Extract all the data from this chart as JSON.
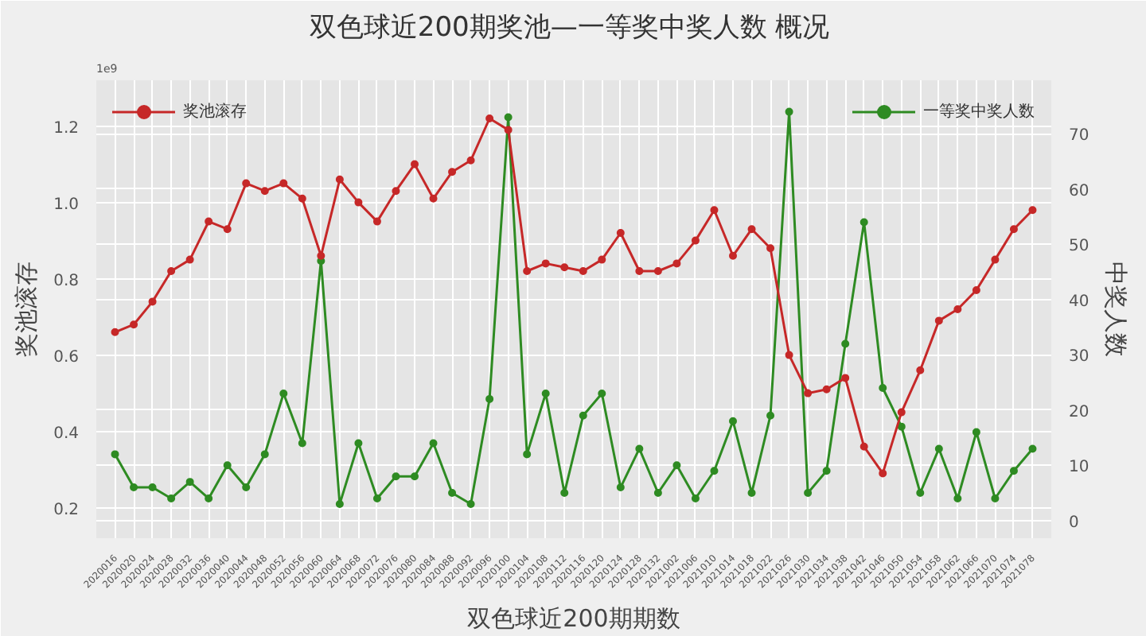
{
  "chart_data": {
    "type": "line",
    "title": "双色球近200期奖池—一等奖中奖人数  概况",
    "xlabel": "双色球近200期期数",
    "ylabel": "奖池滚存",
    "y2label": "中奖人数",
    "annotations": [
      "1e9"
    ],
    "categories": [
      "2020016",
      "2020020",
      "2020024",
      "2020028",
      "2020032",
      "2020036",
      "2020040",
      "2020044",
      "2020048",
      "2020052",
      "2020056",
      "2020060",
      "2020064",
      "2020068",
      "2020072",
      "2020076",
      "2020080",
      "2020084",
      "2020088",
      "2020092",
      "2020096",
      "2020100",
      "2020104",
      "2020108",
      "2020112",
      "2020116",
      "2020120",
      "2020124",
      "2020128",
      "2020132",
      "2021002",
      "2021006",
      "2021010",
      "2021014",
      "2021018",
      "2021022",
      "2021026",
      "2021030",
      "2021034",
      "2021038",
      "2021042",
      "2021046",
      "2021050",
      "2021054",
      "2021058",
      "2021062",
      "2021066",
      "2021070",
      "2021074",
      "2021078"
    ],
    "series": [
      {
        "name": "奖池滚存",
        "color": "#c62828",
        "values": [
          0.66,
          0.68,
          0.74,
          0.82,
          0.85,
          0.95,
          0.93,
          1.05,
          1.03,
          1.05,
          1.01,
          0.86,
          1.06,
          1.0,
          0.95,
          1.03,
          1.1,
          1.01,
          1.08,
          1.11,
          1.22,
          1.19,
          0.82,
          0.84,
          0.83,
          0.82,
          0.85,
          0.92,
          0.82,
          0.82,
          0.84,
          0.9,
          0.98,
          0.86,
          0.93,
          0.88,
          0.6,
          0.5,
          0.51,
          0.54,
          0.36,
          0.29,
          0.45,
          0.56,
          0.69,
          0.72,
          0.77,
          0.85,
          0.93,
          0.98
        ]
      },
      {
        "name": "一等奖中奖人数",
        "color": "#2e8b22",
        "axis": "y2",
        "values": [
          12,
          6,
          6,
          4,
          7,
          4,
          10,
          6,
          12,
          23,
          14,
          47,
          3,
          14,
          4,
          8,
          8,
          14,
          5,
          3,
          22,
          73,
          12,
          23,
          5,
          19,
          23,
          6,
          13,
          5,
          10,
          4,
          9,
          18,
          5,
          19,
          74,
          5,
          9,
          32,
          54,
          24,
          17,
          5,
          13,
          4,
          16,
          4,
          9,
          13
        ]
      }
    ],
    "ylim": [
      0.12,
      1.32
    ],
    "yticks": [
      0.2,
      0.4,
      0.6,
      0.8,
      {
        "value": 1,
        "label": "1.0"
      },
      1.2
    ],
    "y2lim": [
      -3.2,
      79.7
    ],
    "y2ticks": [
      0,
      10,
      20,
      30,
      40,
      50,
      60,
      70
    ],
    "grid": true,
    "legend": "top",
    "marker": "circle",
    "line_style": "solid"
  }
}
